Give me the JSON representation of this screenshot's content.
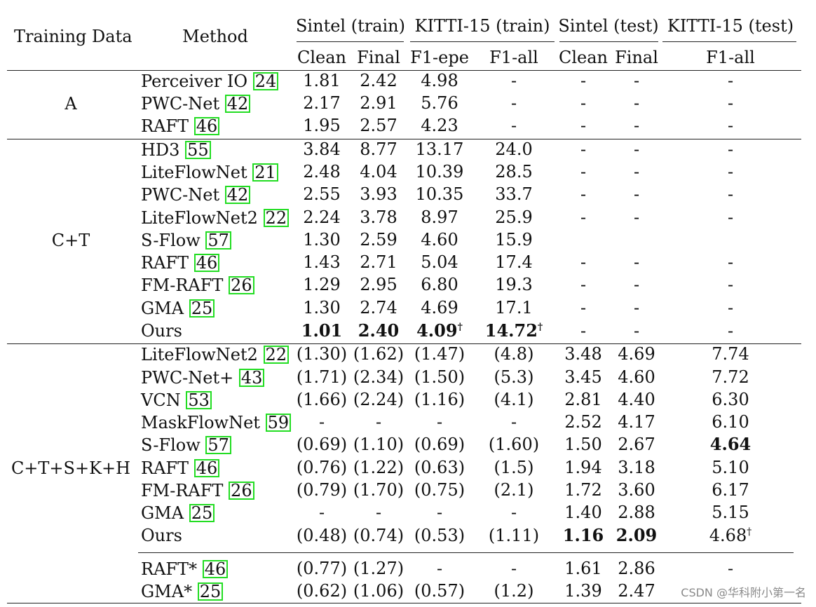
{
  "header": {
    "training_data": "Training Data",
    "method": "Method",
    "groups": [
      "Sintel (train)",
      "KITTI-15 (train)",
      "Sintel (test)",
      "KITTI-15 (test)"
    ],
    "subcols": [
      "Clean",
      "Final",
      "F1-epe",
      "F1-all",
      "Clean",
      "Final",
      "F1-all"
    ]
  },
  "sections": [
    {
      "training_data": "A",
      "rows": [
        {
          "method": "Perceiver IO",
          "ref": "24",
          "values": [
            "1.81",
            "2.42",
            "4.98",
            "-",
            "-",
            "-",
            "-"
          ]
        },
        {
          "method": "PWC-Net",
          "ref": "42",
          "values": [
            "2.17",
            "2.91",
            "5.76",
            "-",
            "-",
            "-",
            "-"
          ]
        },
        {
          "method": "RAFT",
          "ref": "46",
          "values": [
            "1.95",
            "2.57",
            "4.23",
            "-",
            "-",
            "-",
            "-"
          ]
        }
      ]
    },
    {
      "training_data": "C+T",
      "rows": [
        {
          "method": "HD3",
          "ref": "55",
          "values": [
            "3.84",
            "8.77",
            "13.17",
            "24.0",
            "-",
            "-",
            "-"
          ]
        },
        {
          "method": "LiteFlowNet",
          "ref": "21",
          "values": [
            "2.48",
            "4.04",
            "10.39",
            "28.5",
            "-",
            "-",
            "-"
          ]
        },
        {
          "method": "PWC-Net",
          "ref": "42",
          "values": [
            "2.55",
            "3.93",
            "10.35",
            "33.7",
            "-",
            "-",
            "-"
          ]
        },
        {
          "method": "LiteFlowNet2",
          "ref": "22",
          "values": [
            "2.24",
            "3.78",
            "8.97",
            "25.9",
            "-",
            "-",
            "-"
          ]
        },
        {
          "method": "S-Flow",
          "ref": "57",
          "values": [
            "1.30",
            "2.59",
            "4.60",
            "15.9",
            "",
            "",
            ""
          ]
        },
        {
          "method": "RAFT",
          "ref": "46",
          "values": [
            "1.43",
            "2.71",
            "5.04",
            "17.4",
            "-",
            "-",
            "-"
          ]
        },
        {
          "method": "FM-RAFT",
          "ref": "26",
          "values": [
            "1.29",
            "2.95",
            "6.80",
            "19.3",
            "-",
            "-",
            "-"
          ]
        },
        {
          "method": "GMA",
          "ref": "25",
          "values": [
            "1.30",
            "2.74",
            "4.69",
            "17.1",
            "-",
            "-",
            "-"
          ]
        },
        {
          "method": "Ours",
          "ref": "",
          "values": [
            "1.01",
            "2.40",
            "4.09",
            "14.72",
            "-",
            "-",
            "-"
          ],
          "bold": [
            0,
            1,
            2,
            3
          ],
          "dagger": [
            2,
            3
          ]
        }
      ]
    },
    {
      "training_data": "C+T+S+K+H",
      "rows": [
        {
          "method": "LiteFlowNet2",
          "ref": "22",
          "values": [
            "(1.30)",
            "(1.62)",
            "(1.47)",
            "(4.8)",
            "3.48",
            "4.69",
            "7.74"
          ]
        },
        {
          "method": "PWC-Net+",
          "ref": "43",
          "values": [
            "(1.71)",
            "(2.34)",
            "(1.50)",
            "(5.3)",
            "3.45",
            "4.60",
            "7.72"
          ]
        },
        {
          "method": "VCN",
          "ref": "53",
          "values": [
            "(1.66)",
            "(2.24)",
            "(1.16)",
            "(4.1)",
            "2.81",
            "4.40",
            "6.30"
          ]
        },
        {
          "method": "MaskFlowNet",
          "ref": "59",
          "values": [
            "-",
            "-",
            "-",
            "-",
            "2.52",
            "4.17",
            "6.10"
          ]
        },
        {
          "method": "S-Flow",
          "ref": "57",
          "values": [
            "(0.69)",
            "(1.10)",
            "(0.69)",
            "(1.60)",
            "1.50",
            "2.67",
            "4.64"
          ],
          "bold": [
            6
          ]
        },
        {
          "method": "RAFT",
          "ref": "46",
          "values": [
            "(0.76)",
            "(1.22)",
            "(0.63)",
            "(1.5)",
            "1.94",
            "3.18",
            "5.10"
          ]
        },
        {
          "method": "FM-RAFT",
          "ref": "26",
          "values": [
            "(0.79)",
            "(1.70)",
            "(0.75)",
            "(2.1)",
            "1.72",
            "3.60",
            "6.17"
          ]
        },
        {
          "method": "GMA",
          "ref": "25",
          "values": [
            "-",
            "-",
            "-",
            "-",
            "1.40",
            "2.88",
            "5.15"
          ]
        },
        {
          "method": "Ours",
          "ref": "",
          "values": [
            "(0.48)",
            "(0.74)",
            "(0.53)",
            "(1.11)",
            "1.16",
            "2.09",
            "4.68"
          ],
          "bold": [
            4,
            5
          ],
          "dagger": [
            6
          ]
        }
      ]
    },
    {
      "training_data": "",
      "rows": [
        {
          "method": "RAFT*",
          "ref": "46",
          "values": [
            "(0.77)",
            "(1.27)",
            "-",
            "-",
            "1.61",
            "2.86",
            "-"
          ]
        },
        {
          "method": "GMA*",
          "ref": "25",
          "values": [
            "(0.62)",
            "(1.06)",
            "(0.57)",
            "(1.2)",
            "1.39",
            "2.47",
            ""
          ]
        }
      ]
    }
  ],
  "dagger_symbol": "†",
  "watermark": "CSDN @华科附小第一名"
}
